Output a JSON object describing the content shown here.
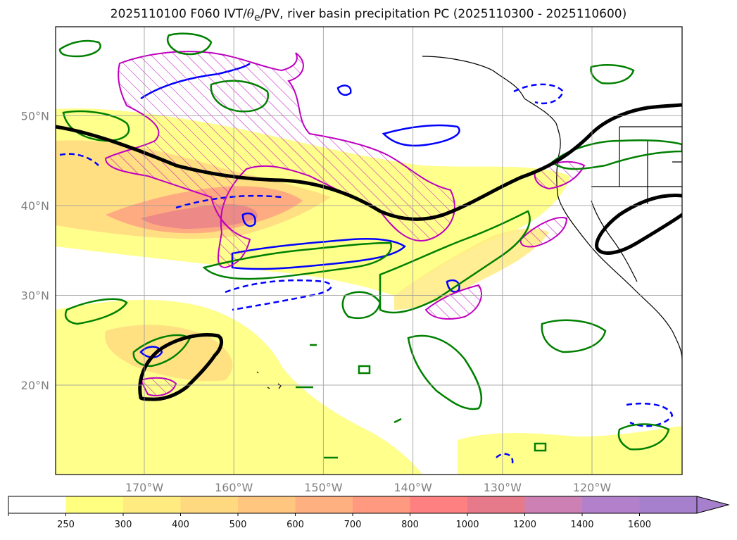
{
  "title": {
    "prefix": "2025110100 F060 IVT/",
    "theta": "θ",
    "theta_sub": "e",
    "suffix": "/PV, river basin precipitation PC (2025110300 - 2025110600)"
  },
  "map": {
    "lon_range": [
      -180,
      -110
    ],
    "lat_range": [
      10,
      60
    ],
    "lat_ticks": [
      {
        "value": 50,
        "label": "50°N"
      },
      {
        "value": 40,
        "label": "40°N"
      },
      {
        "value": 30,
        "label": "30°N"
      },
      {
        "value": 20,
        "label": "20°N"
      }
    ],
    "lon_ticks": [
      {
        "value": -170,
        "label": "170°W"
      },
      {
        "value": -160,
        "label": "160°W"
      },
      {
        "value": -150,
        "label": "150°W"
      },
      {
        "value": -140,
        "label": "140°W"
      },
      {
        "value": -130,
        "label": "130°W"
      },
      {
        "value": -120,
        "label": "120°W"
      }
    ],
    "gridlines": true,
    "colors": {
      "pv_contour": "#000000",
      "theta_e_positive": "#0000ff",
      "theta_e_negative": "#0000ff",
      "precip_pc": "#008000",
      "hatched_region": "#bf00bf"
    }
  },
  "colorbar": {
    "levels": [
      "250",
      "300",
      "400",
      "500",
      "600",
      "700",
      "800",
      "1000",
      "1200",
      "1400",
      "1600"
    ],
    "colors": [
      "#ffffff",
      "#ffff80",
      "#ffeb80",
      "#ffd980",
      "#ffc680",
      "#ffb080",
      "#ff9a80",
      "#ff8080",
      "#e67a8a",
      "#cc80b3",
      "#b380cc",
      "#a680cc"
    ],
    "extend": "max"
  }
}
